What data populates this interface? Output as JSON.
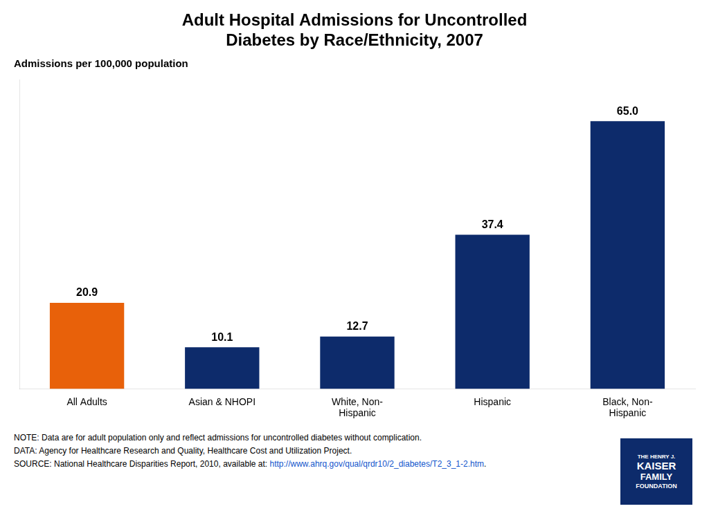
{
  "chart_data": {
    "type": "bar",
    "title": "Adult Hospital Admissions for Uncontrolled\nDiabetes by Race/Ethnicity, 2007",
    "subtitle": "Admissions per 100,000 population",
    "categories": [
      "All Adults",
      "Asian & NHOPI",
      "White, Non-\nHispanic",
      "Hispanic",
      "Black, Non-\nHispanic"
    ],
    "values": [
      20.9,
      10.1,
      12.7,
      37.4,
      65.0
    ],
    "value_labels": [
      "20.9",
      "10.1",
      "12.7",
      "37.4",
      "65.0"
    ],
    "colors": [
      "#E8610A",
      "#0D2B6B",
      "#0D2B6B",
      "#0D2B6B",
      "#0D2B6B"
    ],
    "ylim": [
      0,
      75
    ],
    "grid": false,
    "data_labels": true,
    "tick_labels": "x",
    "annotations": [
      "NOTE: Data are for adult population only and reflect admissions for uncontrolled diabetes without complication.",
      "DATA: Agency for Healthcare Research and Quality, Healthcare Cost and Utilization Project.",
      "SOURCE:  National Healthcare Disparities Report, 2010, available at: http://www.ahrq.gov/qual/qrdr10/2_diabetes/T2_3_1-2.htm.",
      "THE HENRY J.\nKAISER\nFAMILY\nFOUNDATION"
    ]
  }
}
